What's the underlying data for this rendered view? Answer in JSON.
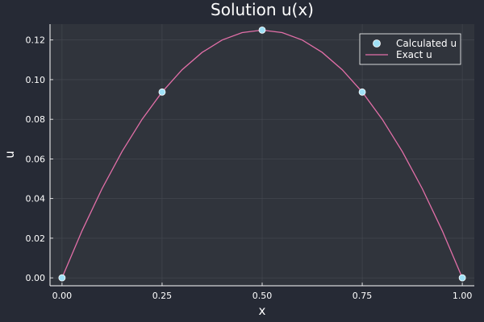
{
  "chart_data": {
    "type": "line",
    "title": "Solution u(x)",
    "xlabel": "x",
    "ylabel": "u",
    "xlim": [
      -0.03,
      1.03
    ],
    "ylim": [
      -0.004,
      0.128
    ],
    "x_ticks": [
      0,
      0.25,
      0.5,
      0.75,
      1.0
    ],
    "x_tick_labels": [
      "0.00",
      "0.25",
      "0.50",
      "0.75",
      "1.00"
    ],
    "y_ticks": [
      0,
      0.02,
      0.04,
      0.06,
      0.08,
      0.1,
      0.12
    ],
    "y_tick_labels": [
      "0.00",
      "0.02",
      "0.04",
      "0.06",
      "0.08",
      "0.10",
      "0.12"
    ],
    "grid": true,
    "legend_position": "top-right",
    "series": [
      {
        "name": "Calculated u",
        "kind": "scatter",
        "color": "#9fe0f6",
        "x": [
          0,
          0.25,
          0.5,
          0.75,
          1.0
        ],
        "y": [
          0,
          0.09375,
          0.125,
          0.09375,
          0
        ]
      },
      {
        "name": "Exact u",
        "kind": "line",
        "color": "#e26fa8",
        "formula": "x(1-x)/2",
        "x": [
          0,
          0.05,
          0.1,
          0.15,
          0.2,
          0.25,
          0.3,
          0.35,
          0.4,
          0.45,
          0.5,
          0.55,
          0.6,
          0.65,
          0.7,
          0.75,
          0.8,
          0.85,
          0.9,
          0.95,
          1.0
        ],
        "y": [
          0,
          0.02375,
          0.045,
          0.06375,
          0.08,
          0.09375,
          0.105,
          0.11375,
          0.12,
          0.12375,
          0.125,
          0.12375,
          0.12,
          0.11375,
          0.105,
          0.09375,
          0.08,
          0.06375,
          0.045,
          0.02375,
          0
        ]
      }
    ]
  },
  "colors": {
    "background": "#262a35",
    "plot_background": "#30343c",
    "grid": "#464a52",
    "axis": "#ffffff"
  }
}
